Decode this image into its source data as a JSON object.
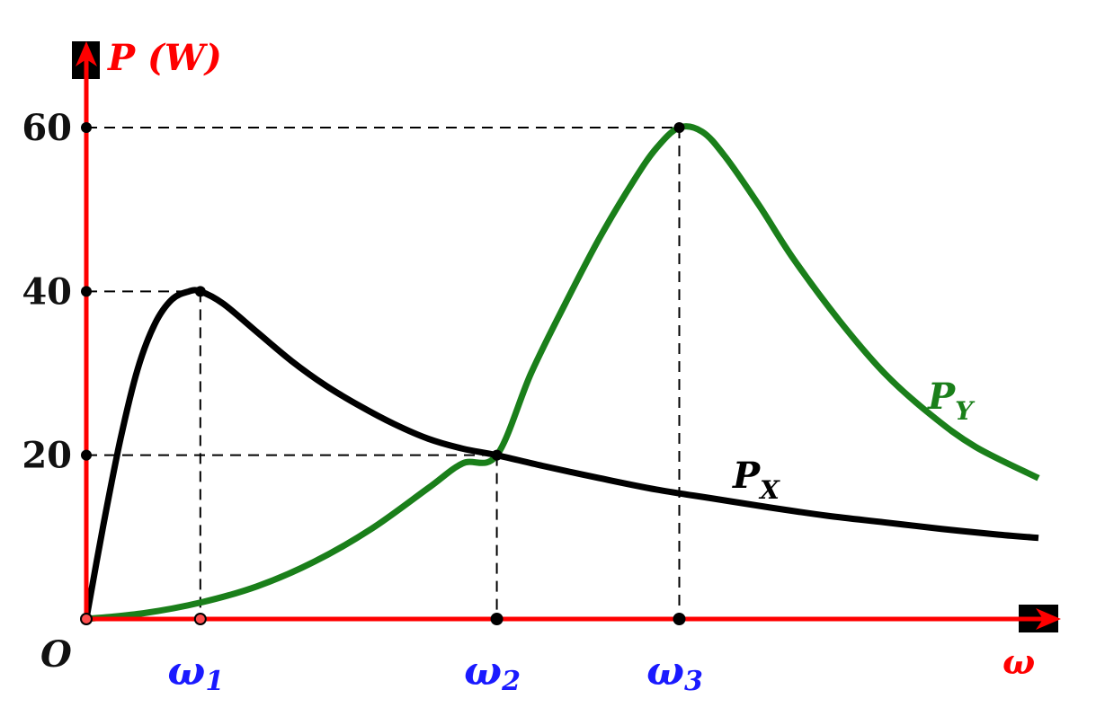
{
  "chart_data": {
    "type": "line",
    "title": "",
    "ylabel": "P (W)",
    "xlabel": "ω",
    "origin_label": "O",
    "yticks": [
      {
        "value": 20,
        "label": "20"
      },
      {
        "value": 40,
        "label": "40"
      },
      {
        "value": 60,
        "label": "60"
      }
    ],
    "xticks": [
      {
        "value": 1,
        "symbol": "ω",
        "sub": "1"
      },
      {
        "value": 3.6,
        "symbol": "ω",
        "sub": "2"
      },
      {
        "value": 5.2,
        "symbol": "ω",
        "sub": "3"
      }
    ],
    "xlim": [
      0,
      8.35
    ],
    "ylim": [
      0,
      63
    ],
    "series": [
      {
        "name": "P",
        "sub": "X",
        "color": "#000000",
        "x": [
          0,
          0.15,
          0.3,
          0.45,
          0.6,
          0.75,
          0.9,
          1.0,
          1.2,
          1.5,
          1.8,
          2.1,
          2.4,
          2.7,
          3.0,
          3.3,
          3.6,
          4.0,
          4.5,
          5.0,
          5.5,
          6.0,
          6.5,
          7.0,
          7.5,
          8.0,
          8.35
        ],
        "y": [
          0,
          11.5,
          22.0,
          30.5,
          36.0,
          39.0,
          40.0,
          40.0,
          38.5,
          35.0,
          31.5,
          28.5,
          26.0,
          23.8,
          22.0,
          20.8,
          20.0,
          18.7,
          17.2,
          15.8,
          14.7,
          13.6,
          12.6,
          11.8,
          11.0,
          10.3,
          9.9
        ]
      },
      {
        "name": "P",
        "sub": "Y",
        "color": "#1a7f1a",
        "x": [
          0,
          0.5,
          1.0,
          1.5,
          2.0,
          2.5,
          3.0,
          3.3,
          3.6,
          3.9,
          4.2,
          4.5,
          4.8,
          5.0,
          5.2,
          5.4,
          5.6,
          5.9,
          6.2,
          6.6,
          7.0,
          7.4,
          7.8,
          8.35
        ],
        "y": [
          0,
          0.7,
          2.0,
          4.0,
          7.0,
          11.0,
          16.0,
          19.0,
          20.0,
          30.0,
          38.5,
          46.5,
          53.5,
          57.5,
          60.0,
          59.5,
          56.5,
          50.5,
          44.0,
          36.5,
          30.0,
          25.0,
          21.0,
          17.2
        ]
      }
    ],
    "guides": [
      {
        "x": 1.0,
        "y": 40
      },
      {
        "x": 3.6,
        "y": 20
      },
      {
        "x": 5.2,
        "y": 60
      }
    ],
    "colors": {
      "axis": "#ff0000",
      "tick_text": "#111111",
      "omega_labels": "#1a1aff",
      "guide": "#000000"
    }
  }
}
